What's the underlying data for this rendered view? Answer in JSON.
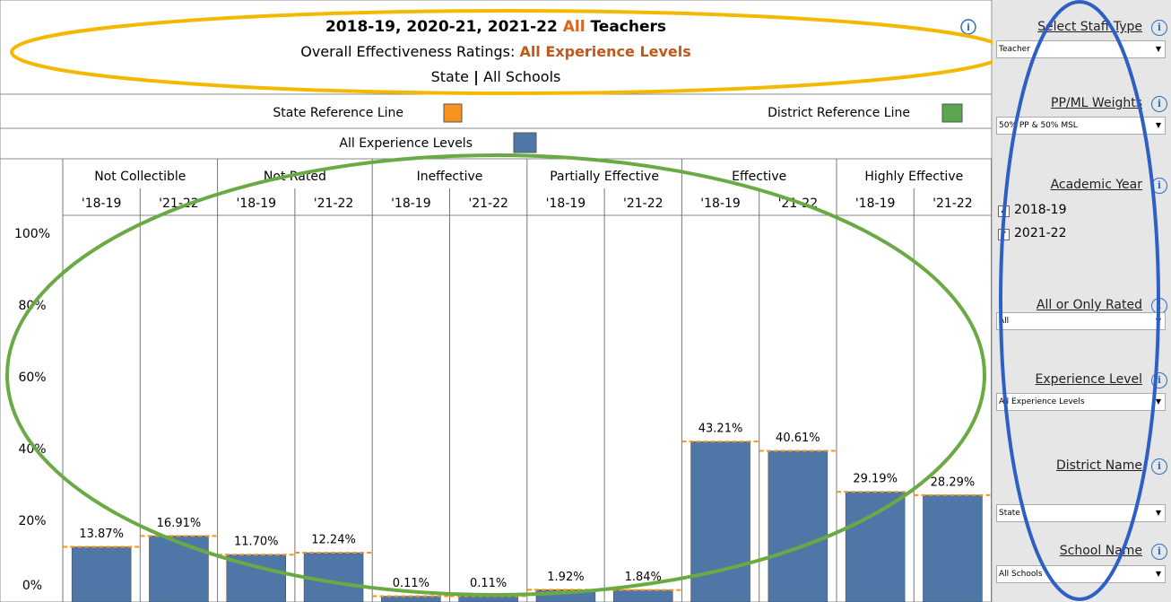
{
  "header": {
    "title_parts": [
      "2018-19, 2020-21, 2021-22 ",
      "All",
      " Teachers"
    ],
    "subtitle_parts": [
      "Overall Effectiveness Ratings: ",
      "All Experience Levels"
    ],
    "scope_parts": [
      "State ",
      "|",
      " All Schools"
    ]
  },
  "legend": {
    "state": "State Reference Line",
    "district": "District Reference Line",
    "levels": "All Experience Levels"
  },
  "chart_data": {
    "type": "bar",
    "categories": [
      "Not Collectible",
      "Not Rated",
      "Ineffective",
      "Partially Effective",
      "Effective",
      "Highly Effective"
    ],
    "series": [
      {
        "name": "'18-19",
        "color": "#4e77a8",
        "values": [
          13.87,
          11.7,
          0.11,
          1.92,
          43.21,
          29.19
        ],
        "value_labels": [
          "13.87%",
          "11.70%",
          "0.11%",
          "1.92%",
          "43.21%",
          "29.19%"
        ]
      },
      {
        "name": "'21-22",
        "color": "#4e77a8",
        "values": [
          16.91,
          12.24,
          0.11,
          1.84,
          40.61,
          28.29
        ],
        "value_labels": [
          "16.91%",
          "12.24%",
          "0.11%",
          "1.84%",
          "40.61%",
          "28.29%"
        ]
      }
    ],
    "reference_color": "#f7941d",
    "ylim": [
      0,
      100
    ],
    "yticks": [
      {
        "value": 0,
        "label": "0%"
      },
      {
        "value": 20,
        "label": "20%"
      },
      {
        "value": 40,
        "label": "40%"
      },
      {
        "value": 60,
        "label": "60%"
      },
      {
        "value": 80,
        "label": "80%"
      },
      {
        "value": 100,
        "label": "100%"
      }
    ]
  },
  "sidebar": {
    "filters": [
      {
        "label": "Select Staff Type",
        "value": "Teacher"
      },
      {
        "label": "PP/ML Weights",
        "value": "50% PP & 50% MSL"
      },
      {
        "label": "Academic Year",
        "options": [
          "2018-19",
          "2021-22"
        ]
      },
      {
        "label": "All or Only Rated",
        "value": "All"
      },
      {
        "label": "Experience Level",
        "value": "All Experience Levels"
      },
      {
        "label": "District Name",
        "value": "State"
      },
      {
        "label": "School Name",
        "value": "All Schools"
      }
    ]
  }
}
